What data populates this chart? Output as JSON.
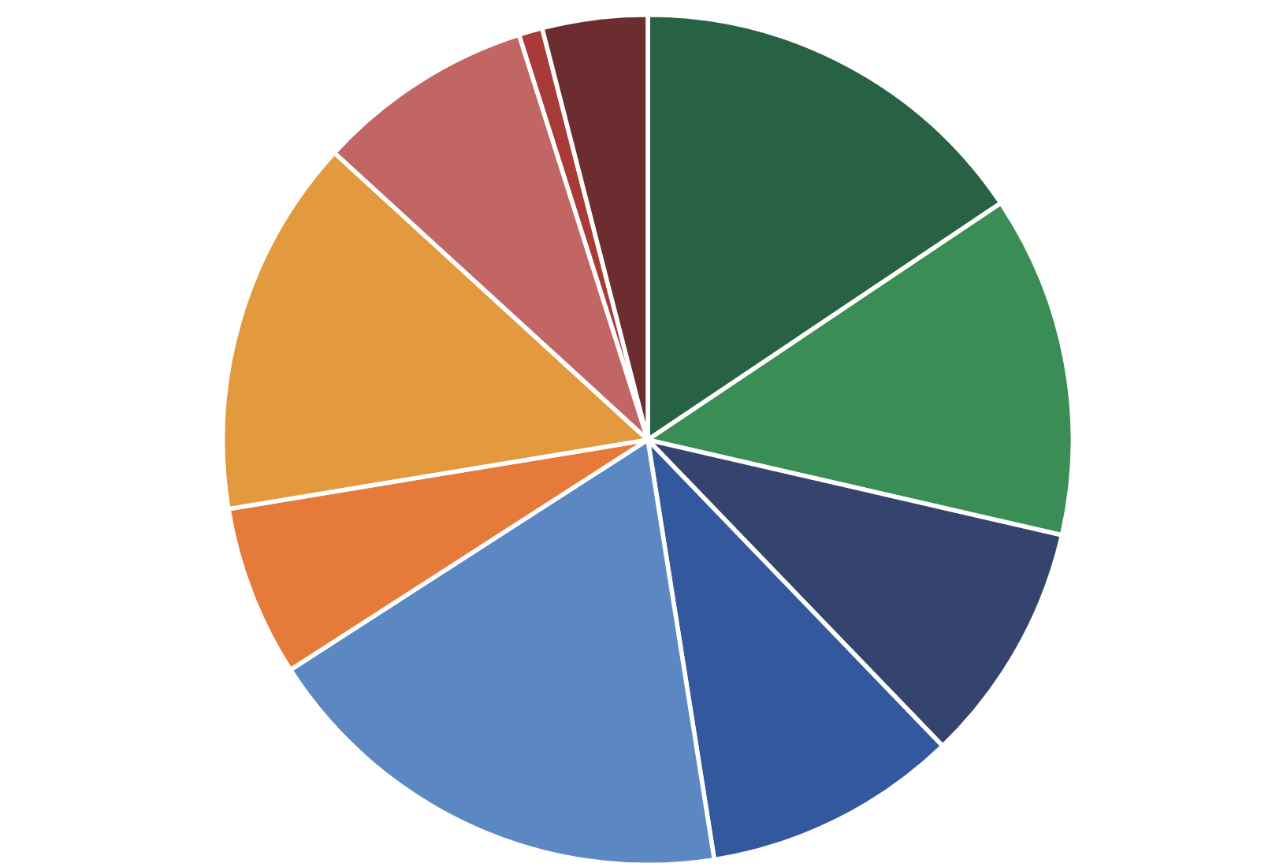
{
  "chart_data": {
    "type": "pie",
    "categories": [
      null,
      null,
      null,
      null,
      null,
      null,
      null,
      null,
      null,
      null
    ],
    "values": [
      15.6,
      13.0,
      9.2,
      9.7,
      18.4,
      6.5,
      14.4,
      8.3,
      0.9,
      4.0
    ],
    "colors": [
      "#276245",
      "#3a8d54",
      "#35446e",
      "#34589e",
      "#5b88c3",
      "#e67a3a",
      "#e3993d",
      "#c26665",
      "#a83a37",
      "#6b2d2f"
    ]
  }
}
